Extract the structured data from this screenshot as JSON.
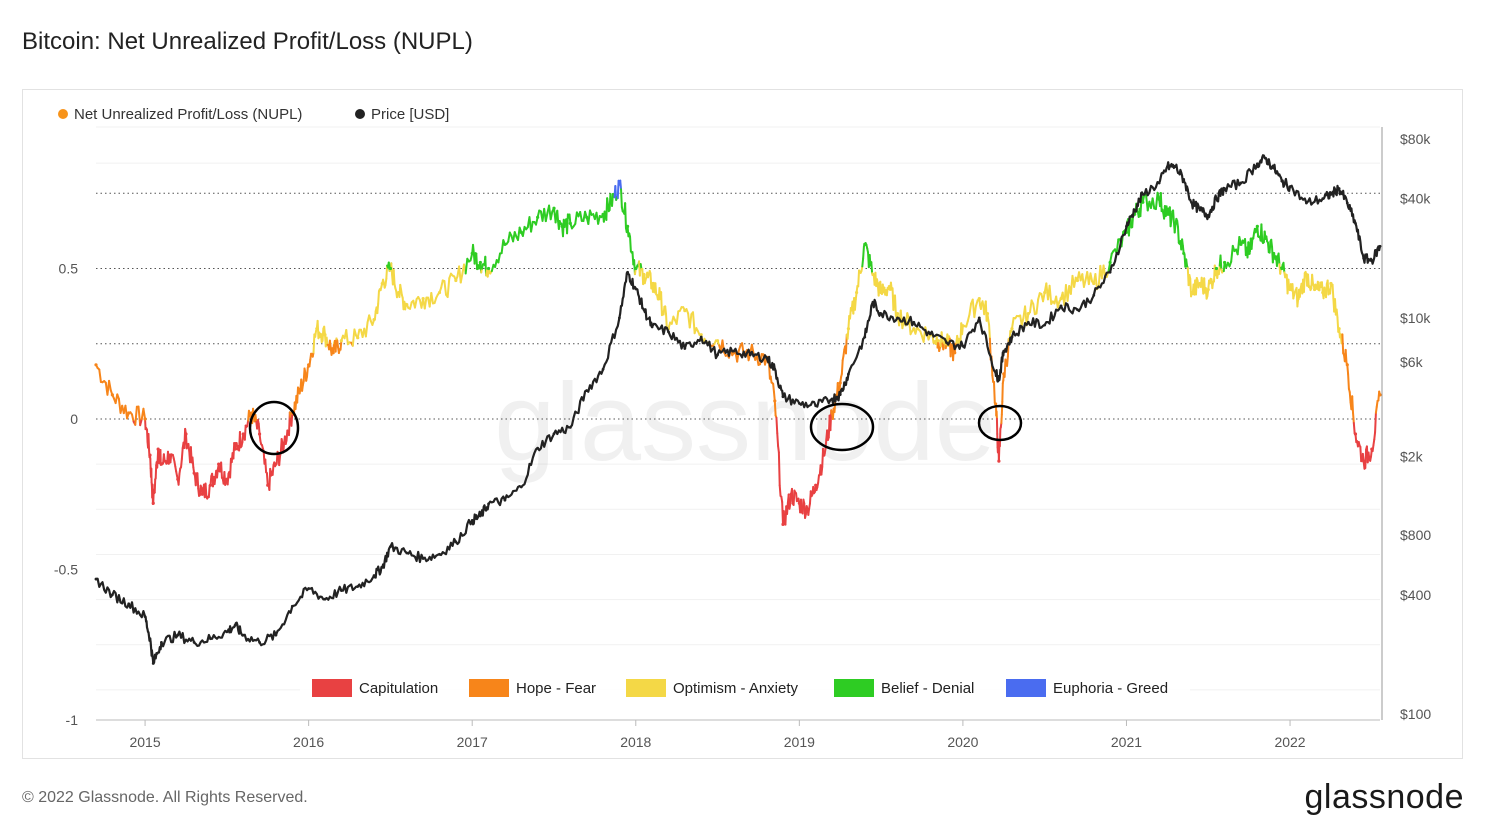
{
  "title": "Bitcoin: Net Unrealized Profit/Loss (NUPL)",
  "footer": "© 2022 Glassnode. All Rights Reserved.",
  "brand": "glassnode",
  "watermark": "glassnode",
  "chart_data": {
    "type": "line",
    "title": "Bitcoin: Net Unrealized Profit/Loss (NUPL)",
    "legend": [
      {
        "name": "Net Unrealized Profit/Loss (NUPL)",
        "color": "#f7931a"
      },
      {
        "name": "Price [USD]",
        "color": "#222222"
      }
    ],
    "zones": [
      {
        "name": "Capitulation",
        "color": "#e84142",
        "range": [
          -1,
          0
        ]
      },
      {
        "name": "Hope - Fear",
        "color": "#f7851a",
        "range": [
          0,
          0.25
        ]
      },
      {
        "name": "Optimism - Anxiety",
        "color": "#f4d846",
        "range": [
          0.25,
          0.5
        ]
      },
      {
        "name": "Belief - Denial",
        "color": "#2ecc23",
        "range": [
          0.5,
          0.75
        ]
      },
      {
        "name": "Euphoria - Greed",
        "color": "#4a6cf0",
        "range": [
          0.75,
          1
        ]
      }
    ],
    "x_tick_labels": [
      "2015",
      "2016",
      "2017",
      "2018",
      "2019",
      "2020",
      "2021",
      "2022"
    ],
    "x_tick_values": [
      2015,
      2016,
      2017,
      2018,
      2019,
      2020,
      2021,
      2022
    ],
    "xlim": [
      2014.7,
      2022.55
    ],
    "y_left_ticks": [
      "0.5",
      "0",
      "-0.5",
      "-1"
    ],
    "y_left_tick_values": [
      0.5,
      0,
      -0.5,
      -1
    ],
    "y_left_lim": [
      -1,
      0.97
    ],
    "y_left_dotted": [
      0.75,
      0.5,
      0.25,
      0
    ],
    "y_right_ticks": [
      "$80k",
      "$40k",
      "$10k",
      "$6k",
      "$2k",
      "$800",
      "$400",
      "$100"
    ],
    "y_right_tick_values": [
      80000,
      40000,
      10000,
      6000,
      2000,
      800,
      400,
      100
    ],
    "y_right_scale": "log",
    "series": [
      {
        "name": "Net Unrealized Profit/Loss (NUPL)",
        "x": [
          2014.7,
          2014.8,
          2014.9,
          2015.0,
          2015.03,
          2015.05,
          2015.08,
          2015.1,
          2015.15,
          2015.2,
          2015.25,
          2015.3,
          2015.35,
          2015.4,
          2015.45,
          2015.5,
          2015.55,
          2015.6,
          2015.65,
          2015.7,
          2015.75,
          2015.8,
          2015.85,
          2015.9,
          2015.95,
          2016.0,
          2016.05,
          2016.1,
          2016.15,
          2016.2,
          2016.3,
          2016.4,
          2016.45,
          2016.5,
          2016.55,
          2016.6,
          2016.7,
          2016.8,
          2016.9,
          2017.0,
          2017.05,
          2017.1,
          2017.2,
          2017.3,
          2017.4,
          2017.5,
          2017.55,
          2017.6,
          2017.7,
          2017.8,
          2017.85,
          2017.9,
          2017.95,
          2018.0,
          2018.05,
          2018.1,
          2018.15,
          2018.2,
          2018.3,
          2018.4,
          2018.5,
          2018.6,
          2018.7,
          2018.8,
          2018.85,
          2018.9,
          2018.95,
          2019.0,
          2019.05,
          2019.1,
          2019.15,
          2019.2,
          2019.25,
          2019.3,
          2019.35,
          2019.4,
          2019.45,
          2019.5,
          2019.55,
          2019.6,
          2019.7,
          2019.8,
          2019.85,
          2019.9,
          2019.95,
          2020.0,
          2020.1,
          2020.15,
          2020.2,
          2020.22,
          2020.25,
          2020.3,
          2020.4,
          2020.5,
          2020.6,
          2020.7,
          2020.8,
          2020.9,
          2021.0,
          2021.05,
          2021.1,
          2021.2,
          2021.25,
          2021.3,
          2021.35,
          2021.4,
          2021.45,
          2021.5,
          2021.55,
          2021.6,
          2021.7,
          2021.75,
          2021.8,
          2021.85,
          2021.9,
          2021.95,
          2022.0,
          2022.05,
          2022.1,
          2022.15,
          2022.2,
          2022.25,
          2022.3,
          2022.35,
          2022.4,
          2022.45,
          2022.5,
          2022.55
        ],
        "values": [
          0.18,
          0.08,
          0.02,
          0.0,
          -0.12,
          -0.28,
          -0.1,
          -0.15,
          -0.12,
          -0.2,
          -0.05,
          -0.18,
          -0.25,
          -0.22,
          -0.15,
          -0.2,
          -0.1,
          -0.05,
          0.02,
          -0.05,
          -0.22,
          -0.15,
          -0.08,
          0.02,
          0.1,
          0.18,
          0.3,
          0.28,
          0.22,
          0.26,
          0.27,
          0.33,
          0.45,
          0.5,
          0.42,
          0.38,
          0.4,
          0.42,
          0.46,
          0.55,
          0.52,
          0.5,
          0.58,
          0.62,
          0.67,
          0.7,
          0.64,
          0.65,
          0.67,
          0.68,
          0.72,
          0.78,
          0.64,
          0.5,
          0.48,
          0.45,
          0.4,
          0.3,
          0.36,
          0.28,
          0.26,
          0.22,
          0.22,
          0.2,
          0.06,
          -0.35,
          -0.25,
          -0.28,
          -0.3,
          -0.22,
          -0.12,
          0.02,
          0.12,
          0.3,
          0.42,
          0.58,
          0.48,
          0.42,
          0.44,
          0.35,
          0.3,
          0.28,
          0.26,
          0.25,
          0.22,
          0.31,
          0.4,
          0.35,
          0.05,
          -0.14,
          0.15,
          0.3,
          0.35,
          0.42,
          0.4,
          0.46,
          0.45,
          0.52,
          0.62,
          0.68,
          0.72,
          0.73,
          0.68,
          0.65,
          0.55,
          0.42,
          0.45,
          0.43,
          0.5,
          0.52,
          0.58,
          0.55,
          0.64,
          0.6,
          0.55,
          0.5,
          0.43,
          0.4,
          0.48,
          0.43,
          0.42,
          0.45,
          0.3,
          0.18,
          -0.05,
          -0.14,
          -0.1,
          0.08
        ]
      },
      {
        "name": "Price [USD]",
        "x": [
          2014.7,
          2014.8,
          2014.9,
          2015.0,
          2015.03,
          2015.05,
          2015.1,
          2015.2,
          2015.3,
          2015.4,
          2015.5,
          2015.55,
          2015.6,
          2015.7,
          2015.8,
          2015.9,
          2016.0,
          2016.1,
          2016.2,
          2016.3,
          2016.4,
          2016.45,
          2016.5,
          2016.6,
          2016.7,
          2016.8,
          2016.9,
          2017.0,
          2017.05,
          2017.1,
          2017.2,
          2017.3,
          2017.4,
          2017.5,
          2017.6,
          2017.7,
          2017.8,
          2017.9,
          2017.95,
          2018.0,
          2018.05,
          2018.1,
          2018.2,
          2018.3,
          2018.4,
          2018.5,
          2018.6,
          2018.7,
          2018.8,
          2018.85,
          2018.9,
          2019.0,
          2019.1,
          2019.2,
          2019.25,
          2019.3,
          2019.4,
          2019.45,
          2019.5,
          2019.6,
          2019.7,
          2019.8,
          2019.9,
          2020.0,
          2020.1,
          2020.2,
          2020.22,
          2020.25,
          2020.3,
          2020.4,
          2020.5,
          2020.6,
          2020.7,
          2020.8,
          2020.9,
          2021.0,
          2021.05,
          2021.1,
          2021.2,
          2021.25,
          2021.3,
          2021.35,
          2021.4,
          2021.45,
          2021.5,
          2021.55,
          2021.6,
          2021.7,
          2021.8,
          2021.85,
          2021.9,
          2021.95,
          2022.0,
          2022.1,
          2022.2,
          2022.25,
          2022.3,
          2022.35,
          2022.4,
          2022.45,
          2022.5,
          2022.55
        ],
        "values": [
          480,
          400,
          360,
          310,
          240,
          180,
          230,
          250,
          230,
          240,
          260,
          280,
          250,
          230,
          250,
          350,
          430,
          380,
          420,
          440,
          500,
          550,
          700,
          650,
          610,
          640,
          740,
          950,
          1000,
          1150,
          1200,
          1400,
          2200,
          2600,
          2800,
          4300,
          5500,
          10000,
          17000,
          14000,
          11000,
          9000,
          8500,
          7000,
          8000,
          6500,
          6800,
          6500,
          6300,
          5500,
          4000,
          3700,
          3600,
          3900,
          4100,
          5200,
          8000,
          12000,
          10500,
          10000,
          9500,
          8300,
          7500,
          7200,
          10000,
          5300,
          4900,
          6800,
          8000,
          9500,
          9200,
          11500,
          11000,
          13000,
          17000,
          29000,
          35000,
          42000,
          48000,
          58000,
          58000,
          50000,
          38000,
          35000,
          33000,
          40000,
          45000,
          48000,
          60000,
          64000,
          57000,
          49000,
          46000,
          38000,
          40000,
          42000,
          45000,
          38000,
          30000,
          20000,
          19500,
          23000
        ]
      }
    ]
  }
}
